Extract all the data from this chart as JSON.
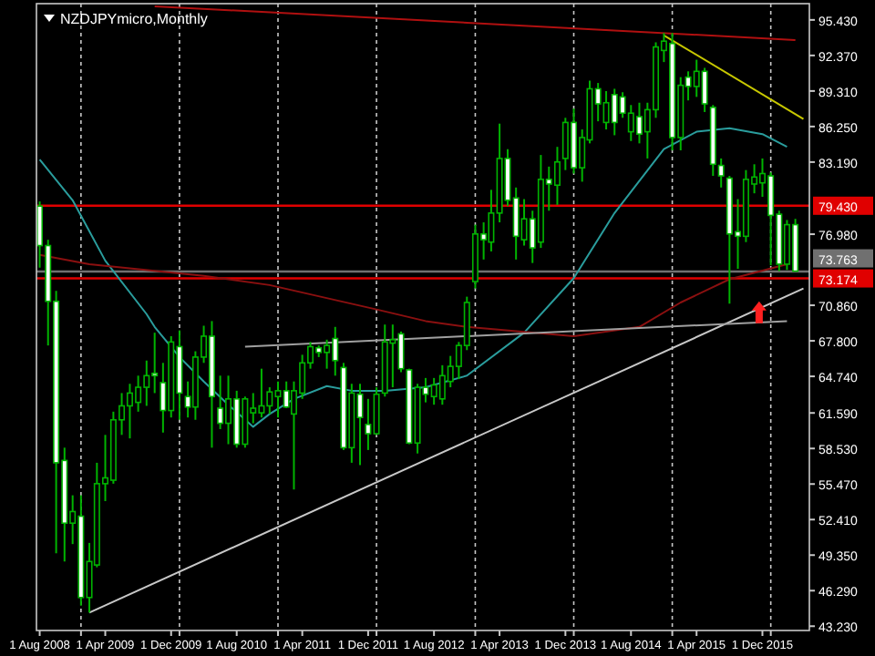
{
  "chart_data": {
    "type": "candlestick",
    "title": "NZDJPYmicro,Monthly",
    "x": [
      "2008-08",
      "2008-09",
      "2008-10",
      "2008-11",
      "2008-12",
      "2009-01",
      "2009-02",
      "2009-03",
      "2009-04",
      "2009-05",
      "2009-06",
      "2009-07",
      "2009-08",
      "2009-09",
      "2009-10",
      "2009-11",
      "2009-12",
      "2010-01",
      "2010-02",
      "2010-03",
      "2010-04",
      "2010-05",
      "2010-06",
      "2010-07",
      "2010-08",
      "2010-09",
      "2010-10",
      "2010-11",
      "2010-12",
      "2011-01",
      "2011-02",
      "2011-03",
      "2011-04",
      "2011-05",
      "2011-06",
      "2011-07",
      "2011-08",
      "2011-09",
      "2011-10",
      "2011-11",
      "2011-12",
      "2012-01",
      "2012-02",
      "2012-03",
      "2012-04",
      "2012-05",
      "2012-06",
      "2012-07",
      "2012-08",
      "2012-09",
      "2012-10",
      "2012-11",
      "2012-12",
      "2013-01",
      "2013-02",
      "2013-03",
      "2013-04",
      "2013-05",
      "2013-06",
      "2013-07",
      "2013-08",
      "2013-09",
      "2013-10",
      "2013-11",
      "2013-12",
      "2014-01",
      "2014-02",
      "2014-03",
      "2014-04",
      "2014-05",
      "2014-06",
      "2014-07",
      "2014-08",
      "2014-09",
      "2014-10",
      "2014-11",
      "2014-12",
      "2015-01",
      "2015-02",
      "2015-03",
      "2015-04",
      "2015-05",
      "2015-06",
      "2015-07",
      "2015-08",
      "2015-09",
      "2015-10",
      "2015-11",
      "2015-12",
      "2016-01",
      "2016-02",
      "2016-03",
      "2016-04"
    ],
    "ohlc": [
      [
        79.4,
        79.8,
        74.1,
        76.0
      ],
      [
        76.0,
        76.5,
        67.4,
        71.2
      ],
      [
        71.2,
        72.1,
        49.5,
        57.3
      ],
      [
        57.5,
        58.6,
        48.8,
        52.1
      ],
      [
        52.1,
        54.5,
        50.3,
        53.1
      ],
      [
        52.7,
        54.5,
        45.0,
        45.7
      ],
      [
        45.7,
        50.4,
        44.4,
        48.8
      ],
      [
        48.5,
        57.3,
        48.3,
        55.5
      ],
      [
        55.5,
        59.7,
        54.0,
        56.0
      ],
      [
        55.8,
        61.7,
        55.5,
        61.0
      ],
      [
        61.0,
        63.3,
        59.7,
        62.2
      ],
      [
        62.2,
        64.1,
        59.4,
        63.3
      ],
      [
        62.5,
        64.8,
        61.7,
        63.8
      ],
      [
        63.8,
        66.1,
        62.2,
        64.8
      ],
      [
        65.0,
        68.5,
        63.3,
        64.8
      ],
      [
        64.2,
        65.9,
        59.9,
        61.8
      ],
      [
        61.8,
        68.2,
        61.2,
        67.7
      ],
      [
        67.3,
        68.7,
        61.0,
        63.3
      ],
      [
        63.0,
        64.3,
        61.2,
        62.1
      ],
      [
        62.1,
        66.9,
        61.0,
        66.4
      ],
      [
        66.4,
        69.1,
        65.9,
        68.2
      ],
      [
        68.2,
        69.5,
        58.6,
        63.0
      ],
      [
        62.0,
        64.8,
        60.2,
        60.7
      ],
      [
        60.7,
        64.8,
        58.9,
        62.8
      ],
      [
        62.8,
        63.5,
        58.6,
        58.9
      ],
      [
        58.9,
        63.0,
        58.6,
        62.8
      ],
      [
        61.6,
        63.3,
        60.7,
        62.0
      ],
      [
        61.6,
        65.4,
        61.2,
        62.2
      ],
      [
        62.2,
        63.8,
        61.5,
        63.4
      ],
      [
        63.0,
        64.3,
        61.2,
        63.5
      ],
      [
        63.5,
        64.3,
        62.0,
        62.1
      ],
      [
        61.5,
        64.3,
        55.0,
        63.5
      ],
      [
        63.3,
        66.6,
        62.8,
        65.9
      ],
      [
        65.9,
        67.7,
        65.4,
        67.3
      ],
      [
        67.2,
        67.4,
        66.4,
        66.8
      ],
      [
        66.8,
        67.9,
        65.4,
        67.4
      ],
      [
        68.0,
        69.0,
        64.8,
        66.1
      ],
      [
        65.5,
        65.9,
        58.4,
        58.6
      ],
      [
        58.6,
        64.1,
        57.3,
        63.3
      ],
      [
        63.2,
        64.1,
        57.1,
        61.2
      ],
      [
        60.6,
        62.8,
        58.4,
        59.8
      ],
      [
        59.8,
        63.8,
        59.7,
        63.2
      ],
      [
        63.3,
        69.2,
        63.0,
        67.7
      ],
      [
        67.6,
        69.2,
        63.8,
        67.9
      ],
      [
        68.4,
        68.6,
        65.1,
        65.4
      ],
      [
        65.3,
        65.4,
        58.9,
        59.0
      ],
      [
        59.0,
        64.1,
        58.1,
        63.8
      ],
      [
        63.8,
        64.6,
        62.5,
        63.2
      ],
      [
        63.0,
        64.6,
        62.3,
        64.0
      ],
      [
        62.8,
        65.7,
        62.3,
        64.8
      ],
      [
        64.3,
        66.5,
        63.8,
        65.6
      ],
      [
        65.6,
        67.7,
        64.5,
        67.4
      ],
      [
        67.4,
        71.6,
        67.0,
        71.1
      ],
      [
        72.9,
        77.8,
        72.3,
        77.0
      ],
      [
        77.0,
        78.0,
        74.8,
        76.5
      ],
      [
        76.3,
        80.8,
        75.5,
        78.8
      ],
      [
        78.8,
        86.5,
        78.0,
        83.5
      ],
      [
        83.5,
        84.3,
        79.4,
        79.9
      ],
      [
        80.1,
        81.0,
        74.8,
        76.8
      ],
      [
        76.5,
        80.0,
        76.0,
        78.3
      ],
      [
        78.3,
        79.0,
        74.5,
        75.8
      ],
      [
        76.3,
        83.8,
        75.8,
        81.7
      ],
      [
        81.7,
        82.8,
        79.0,
        81.3
      ],
      [
        81.2,
        84.5,
        79.5,
        83.2
      ],
      [
        83.5,
        87.0,
        82.5,
        86.6
      ],
      [
        86.6,
        87.8,
        82.2,
        82.7
      ],
      [
        82.7,
        86.0,
        81.5,
        85.3
      ],
      [
        85.1,
        90.2,
        84.8,
        89.5
      ],
      [
        89.5,
        90.0,
        86.7,
        88.2
      ],
      [
        86.6,
        89.3,
        86.0,
        88.3
      ],
      [
        89.0,
        89.5,
        85.5,
        86.6
      ],
      [
        88.8,
        89.2,
        87.0,
        87.4
      ],
      [
        85.8,
        88.1,
        85.0,
        87.4
      ],
      [
        87.1,
        88.3,
        84.8,
        85.6
      ],
      [
        85.8,
        88.3,
        83.5,
        87.7
      ],
      [
        87.7,
        93.5,
        87.0,
        93.1
      ],
      [
        92.8,
        94.3,
        91.8,
        93.6
      ],
      [
        93.4,
        94.3,
        84.2,
        85.3
      ],
      [
        85.3,
        90.5,
        84.2,
        89.8
      ],
      [
        90.5,
        91.0,
        88.5,
        89.7
      ],
      [
        89.7,
        92.0,
        88.8,
        91.0
      ],
      [
        91.0,
        91.3,
        87.5,
        88.2
      ],
      [
        87.9,
        88.1,
        82.0,
        83.0
      ],
      [
        82.9,
        83.5,
        81.0,
        82.0
      ],
      [
        81.8,
        82.0,
        71.0,
        77.0
      ],
      [
        77.2,
        80.0,
        74.0,
        76.8
      ],
      [
        76.8,
        82.5,
        76.3,
        81.7
      ],
      [
        81.3,
        83.0,
        80.5,
        81.9
      ],
      [
        81.4,
        83.5,
        80.2,
        82.2
      ],
      [
        82.0,
        82.3,
        74.3,
        78.6
      ],
      [
        78.7,
        79.0,
        73.8,
        74.4
      ],
      [
        74.4,
        78.2,
        73.9,
        77.8
      ],
      [
        77.8,
        78.3,
        73.8,
        73.8
      ]
    ],
    "color": "#00b400",
    "series": [
      {
        "type": "line",
        "color": "#2a9d9d",
        "x": [
          "2008-08",
          "2008-12",
          "2009-04",
          "2009-09",
          "2009-10",
          "2010-01",
          "2010-04",
          "2010-07",
          "2010-10",
          "2010-12",
          "2011-03",
          "2011-07",
          "2011-10",
          "2012-02",
          "2012-07",
          "2012-12",
          "2013-07",
          "2014-01",
          "2014-06",
          "2014-12",
          "2015-04",
          "2015-08",
          "2015-12",
          "2016-03"
        ],
        "values": [
          83.4,
          79.9,
          74.7,
          70.1,
          69.0,
          66.4,
          64.3,
          62.3,
          60.4,
          61.5,
          62.8,
          63.9,
          63.5,
          63.5,
          63.8,
          64.8,
          68.5,
          73.2,
          78.8,
          84.3,
          85.8,
          86.1,
          85.6,
          84.5
        ]
      },
      {
        "type": "line",
        "color": "#8b1010",
        "x": [
          "2008-08",
          "2009-02",
          "2010-04",
          "2010-12",
          "2012-01",
          "2012-07",
          "2012-12",
          "2014-01",
          "2014-09",
          "2015-02",
          "2015-08",
          "2016-03"
        ],
        "values": [
          75.2,
          74.4,
          73.4,
          72.6,
          70.5,
          69.5,
          69.0,
          68.2,
          69.0,
          71.1,
          73.1,
          74.4
        ]
      },
      {
        "type": "line",
        "color": "#b01010",
        "x": [
          "2009-10",
          "2016-04"
        ],
        "values": [
          96.6,
          93.7
        ]
      },
      {
        "type": "line",
        "color": "#c8c800",
        "x": [
          "2014-12",
          "2016-05"
        ],
        "values": [
          94.1,
          86.9
        ]
      },
      {
        "type": "line",
        "color": "#c8c8c8",
        "x": [
          "2009-02",
          "2016-05"
        ],
        "values": [
          44.4,
          72.3
        ]
      },
      {
        "type": "line",
        "color": "#a0a0a0",
        "x": [
          "2010-09",
          "2016-03"
        ],
        "values": [
          67.3,
          69.5
        ]
      }
    ],
    "ref_lines": [
      {
        "axis": "y",
        "value": 79.43,
        "label": "79.430",
        "color": "#e00000"
      },
      {
        "axis": "y",
        "value": 73.174,
        "label": "73.174",
        "color": "#e00000"
      },
      {
        "axis": "y",
        "value": 73.763,
        "label": "73.763",
        "color": "#707070"
      }
    ],
    "xlim": [
      "2008-07-20",
      "2016-05-23"
    ],
    "xticks": [
      {
        "value": "2008-08",
        "label": "1 Aug 2008"
      },
      {
        "value": "2009-01",
        "label": null
      },
      {
        "value": "2009-04",
        "label": "1 Apr 2009"
      },
      {
        "value": "2009-12",
        "label": "1 Dec 2009"
      },
      {
        "value": "2010-01",
        "label": null
      },
      {
        "value": "2010-08",
        "label": "1 Aug 2010"
      },
      {
        "value": "2011-01",
        "label": null
      },
      {
        "value": "2011-04",
        "label": "1 Apr 2011"
      },
      {
        "value": "2011-12",
        "label": "1 Dec 2011"
      },
      {
        "value": "2012-01",
        "label": null
      },
      {
        "value": "2012-08",
        "label": "1 Aug 2012"
      },
      {
        "value": "2013-01",
        "label": null
      },
      {
        "value": "2013-04",
        "label": "1 Apr 2013"
      },
      {
        "value": "2013-12",
        "label": "1 Dec 2013"
      },
      {
        "value": "2014-01",
        "label": null
      },
      {
        "value": "2014-08",
        "label": "1 Aug 2014"
      },
      {
        "value": "2015-01",
        "label": null
      },
      {
        "value": "2015-04",
        "label": "1 Apr 2015"
      },
      {
        "value": "2015-12",
        "label": "1 Dec 2015"
      },
      {
        "value": "2016-01",
        "label": null
      }
    ],
    "ylim": [
      42.86,
      96.83
    ],
    "yticks": [
      {
        "value": 95.43,
        "label": "95.430"
      },
      {
        "value": 92.37,
        "label": "92.370"
      },
      {
        "value": 89.31,
        "label": "89.310"
      },
      {
        "value": 86.25,
        "label": "86.250"
      },
      {
        "value": 83.19,
        "label": "83.190"
      },
      {
        "value": 76.98,
        "label": "76.980"
      },
      {
        "value": 70.86,
        "label": "70.860"
      },
      {
        "value": 67.8,
        "label": "67.800"
      },
      {
        "value": 64.74,
        "label": "64.740"
      },
      {
        "value": 61.59,
        "label": "61.590"
      },
      {
        "value": 58.53,
        "label": "58.530"
      },
      {
        "value": 55.47,
        "label": "55.470"
      },
      {
        "value": 52.41,
        "label": "52.410"
      },
      {
        "value": 49.35,
        "label": "49.350"
      },
      {
        "value": 46.29,
        "label": "46.290"
      },
      {
        "value": 43.23,
        "label": "43.230"
      }
    ],
    "grid": "x",
    "marker": "none",
    "line_style": "solid"
  }
}
